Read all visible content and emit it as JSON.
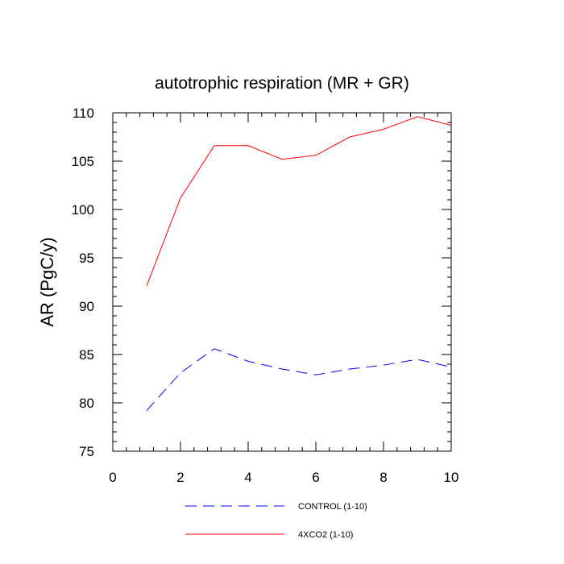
{
  "chart_data": {
    "type": "line",
    "title": "autotrophic respiration (MR + GR)",
    "xlabel": "",
    "ylabel": "AR  (PgC/y)",
    "xlim": [
      0,
      10
    ],
    "ylim": [
      75,
      110
    ],
    "x_ticks": [
      0,
      2,
      4,
      6,
      8,
      10
    ],
    "y_ticks": [
      75,
      80,
      85,
      90,
      95,
      100,
      105,
      110
    ],
    "grid": false,
    "legend_position": "bottom",
    "series": [
      {
        "name": "CONTROL (1-10)",
        "color": "#0000ff",
        "style": "dashed",
        "x": [
          1,
          2,
          3,
          4,
          5,
          6,
          7,
          8,
          9,
          10
        ],
        "values": [
          79.2,
          83.1,
          85.6,
          84.3,
          83.5,
          82.9,
          83.5,
          83.9,
          84.5,
          83.7
        ]
      },
      {
        "name": "4XCO2 (1-10)",
        "color": "#ff0000",
        "style": "solid",
        "x": [
          1,
          2,
          3,
          4,
          5,
          6,
          7,
          8,
          9,
          10
        ],
        "values": [
          92.1,
          101.2,
          106.6,
          106.6,
          105.2,
          105.6,
          107.5,
          108.3,
          109.6,
          108.7
        ]
      }
    ]
  }
}
